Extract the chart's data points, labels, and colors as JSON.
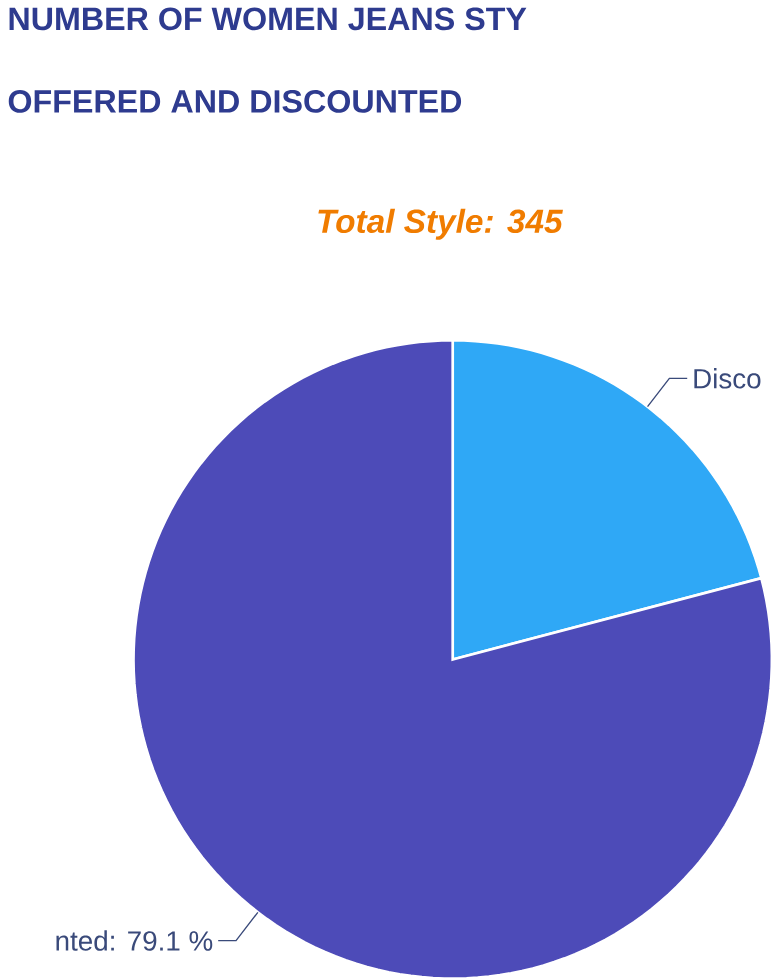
{
  "chart_data": {
    "type": "pie",
    "title": "NUMBER OF WOMEN JEANS STY",
    "subtitle": "OFFERED AND DISCOUNTED",
    "annotations": [
      "Total Style: 345"
    ],
    "categories": [
      "Disco",
      "nted: 79.1 %"
    ],
    "values": [
      20.9,
      79.1
    ],
    "colors": [
      "#2fa8f6",
      "#4d4bb8"
    ]
  }
}
